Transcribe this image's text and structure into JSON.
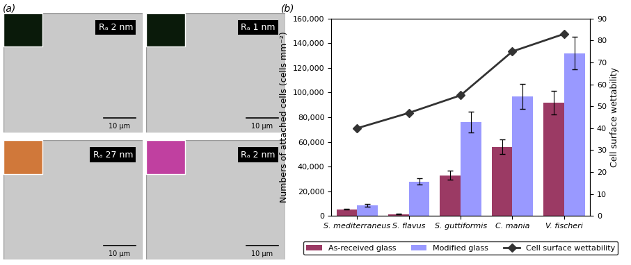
{
  "panel_labels": [
    "(a)",
    "(b)"
  ],
  "micrographs": [
    {
      "label": "Rₐ 2 nm",
      "scale_bar": "10 µm"
    },
    {
      "label": "Rₐ 1 nm",
      "scale_bar": "10 µm"
    },
    {
      "label": "Rₐ 27 nm",
      "scale_bar": "10 µm"
    },
    {
      "label": "Rₐ 2 nm",
      "scale_bar": "10 µm"
    }
  ],
  "chart_data": {
    "type": "bar",
    "categories": [
      "S. mediterraneus",
      "S. flavus",
      "S. guttiformis",
      "C. mania",
      "V. fischeri"
    ],
    "series": [
      {
        "name": "As-received glass",
        "color": "#9b3a64",
        "type": "bar",
        "values": [
          5500,
          1500,
          33000,
          56000,
          92000
        ],
        "errors": [
          500,
          300,
          3500,
          6000,
          9500
        ]
      },
      {
        "name": "Modified glass",
        "color": "#9999ff",
        "type": "bar",
        "values": [
          8500,
          28000,
          76000,
          97000,
          132000
        ],
        "errors": [
          1000,
          2500,
          8500,
          10000,
          13000
        ]
      },
      {
        "name": "Cell surface wettability",
        "color": "#333333",
        "type": "line",
        "axis": "y2",
        "marker": "diamond",
        "line_style": "solid",
        "values": [
          40,
          47,
          55,
          75,
          83
        ]
      }
    ],
    "y_label": "Numbers of attached cells (cells mm⁻²)",
    "y2_label": "Cell surface wettability",
    "ylim": [
      0,
      160000
    ],
    "yticks": [
      0,
      {
        "value": 20000,
        "label": "20,000"
      },
      {
        "value": 40000,
        "label": "40,000"
      },
      {
        "value": 60000,
        "label": "60,000"
      },
      {
        "value": 80000,
        "label": "80,000"
      },
      {
        "value": 100000,
        "label": "100,000"
      },
      {
        "value": 120000,
        "label": "120,000"
      },
      {
        "value": 140000,
        "label": "140,000"
      },
      {
        "value": 160000,
        "label": "160,000"
      }
    ],
    "y2lim": [
      0,
      90
    ],
    "y2ticks": [
      0,
      10,
      20,
      30,
      40,
      50,
      60,
      70,
      80,
      90
    ],
    "legend": "bottom",
    "grid": false
  }
}
